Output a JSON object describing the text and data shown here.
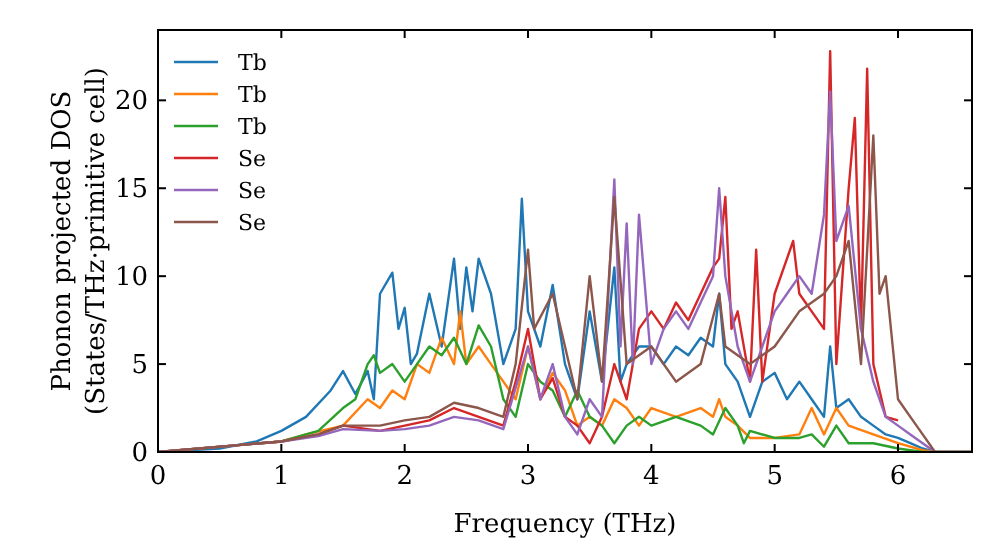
{
  "chart_data": {
    "type": "line",
    "xlabel": "Frequency (THz)",
    "ylabel": "Phonon projected DOS\n(States/THz·primitive cell)",
    "xlim": [
      0,
      6.6
    ],
    "ylim": [
      0,
      24
    ],
    "xticks": [
      0,
      1,
      2,
      3,
      4,
      5,
      6
    ],
    "yticks": [
      0,
      5,
      10,
      15,
      20
    ],
    "legend": "top left",
    "grid": false,
    "marker": "none",
    "line_style": "solid",
    "series": [
      {
        "name": "Tb",
        "color": "#1f77b4",
        "x": [
          0,
          0.5,
          0.8,
          1.0,
          1.2,
          1.4,
          1.5,
          1.6,
          1.7,
          1.75,
          1.8,
          1.9,
          1.95,
          2.0,
          2.05,
          2.1,
          2.2,
          2.3,
          2.4,
          2.45,
          2.5,
          2.55,
          2.6,
          2.7,
          2.8,
          2.9,
          2.95,
          3.0,
          3.1,
          3.2,
          3.3,
          3.4,
          3.5,
          3.6,
          3.7,
          3.75,
          3.8,
          3.9,
          4.0,
          4.1,
          4.2,
          4.3,
          4.4,
          4.5,
          4.55,
          4.6,
          4.7,
          4.8,
          4.9,
          5.0,
          5.1,
          5.2,
          5.3,
          5.4,
          5.45,
          5.5,
          5.6,
          5.7,
          5.8,
          5.9,
          6.0,
          6.1,
          6.2,
          6.3,
          6.6
        ],
        "values": [
          0,
          0.2,
          0.6,
          1.2,
          2,
          3.5,
          4.6,
          3.3,
          4.6,
          3,
          9,
          10.2,
          7,
          8.2,
          5,
          5.6,
          9,
          6,
          11,
          7,
          10.5,
          8,
          11,
          9,
          5,
          7,
          14.4,
          8,
          6,
          9.5,
          5,
          3,
          8,
          4,
          10.5,
          4,
          5,
          6,
          6,
          5,
          6,
          5.5,
          6.5,
          6,
          9,
          5,
          4,
          2,
          4,
          4.5,
          3,
          4,
          3,
          2,
          6,
          2.5,
          3,
          2,
          1.5,
          1,
          0.8,
          0.5,
          0.2,
          0,
          0
        ]
      },
      {
        "name": "Tb",
        "color": "#ff7f0e",
        "x": [
          0,
          1.0,
          1.2,
          1.5,
          1.7,
          1.8,
          1.9,
          2.0,
          2.1,
          2.2,
          2.3,
          2.4,
          2.45,
          2.5,
          2.6,
          2.7,
          2.8,
          2.9,
          3.0,
          3.1,
          3.2,
          3.3,
          3.4,
          3.5,
          3.6,
          3.7,
          3.8,
          3.9,
          4.0,
          4.2,
          4.4,
          4.5,
          4.55,
          4.6,
          4.7,
          4.8,
          5.0,
          5.2,
          5.3,
          5.4,
          5.5,
          5.6,
          5.8,
          6.0,
          6.2,
          6.3,
          6.6
        ],
        "values": [
          0,
          0.6,
          1,
          1.5,
          3,
          2.5,
          3.5,
          3,
          5,
          4.5,
          6.5,
          5,
          8,
          5,
          6,
          5,
          4,
          3,
          6,
          3,
          4.5,
          3.5,
          1.5,
          2,
          1.5,
          3,
          2.5,
          1.5,
          2.5,
          2,
          2.5,
          2,
          3,
          2,
          1.5,
          0.8,
          0.8,
          1,
          2.5,
          1,
          2.5,
          1.5,
          1,
          0.5,
          0.1,
          0,
          0
        ]
      },
      {
        "name": "Tb",
        "color": "#2ca02c",
        "x": [
          0,
          1.0,
          1.3,
          1.5,
          1.6,
          1.7,
          1.75,
          1.8,
          1.9,
          2.0,
          2.1,
          2.2,
          2.3,
          2.4,
          2.5,
          2.6,
          2.7,
          2.8,
          2.9,
          3.0,
          3.1,
          3.2,
          3.3,
          3.4,
          3.5,
          3.6,
          3.7,
          3.8,
          3.9,
          4.0,
          4.2,
          4.4,
          4.5,
          4.6,
          4.7,
          4.75,
          4.8,
          5.0,
          5.2,
          5.3,
          5.4,
          5.5,
          5.6,
          5.8,
          6.0,
          6.2,
          6.6
        ],
        "values": [
          0,
          0.6,
          1.2,
          2.5,
          3,
          5,
          5.5,
          4.5,
          5,
          4,
          5,
          6,
          5.5,
          6.5,
          5,
          7.2,
          6,
          3,
          2,
          5,
          4,
          3.5,
          2,
          3.5,
          2,
          1.5,
          0.5,
          1.5,
          2,
          1.5,
          2,
          1.5,
          1,
          2.5,
          1.5,
          0.5,
          1.2,
          0.8,
          0.8,
          1,
          0.3,
          1.5,
          0.5,
          0.5,
          0.2,
          0,
          0
        ]
      },
      {
        "name": "Se",
        "color": "#d62728",
        "x": [
          0,
          1.0,
          1.3,
          1.5,
          1.8,
          2.0,
          2.2,
          2.4,
          2.6,
          2.8,
          2.9,
          3.0,
          3.1,
          3.2,
          3.3,
          3.4,
          3.5,
          3.6,
          3.7,
          3.8,
          3.9,
          4.0,
          4.1,
          4.2,
          4.3,
          4.4,
          4.5,
          4.55,
          4.6,
          4.65,
          4.7,
          4.8,
          4.85,
          4.9,
          5.0,
          5.1,
          5.15,
          5.2,
          5.3,
          5.4,
          5.45,
          5.5,
          5.55,
          5.6,
          5.65,
          5.7,
          5.75,
          5.8,
          5.9,
          6.0
        ],
        "values": [
          0,
          0.6,
          1,
          1.5,
          1.2,
          1.5,
          1.8,
          2.5,
          2,
          1.5,
          4,
          7,
          3,
          4.2,
          2,
          1.5,
          0.5,
          2,
          5,
          3,
          7,
          8,
          7,
          8.5,
          7.5,
          9,
          10.5,
          11,
          14.5,
          7,
          8,
          4,
          11.5,
          4,
          9,
          11,
          12,
          9,
          8,
          7,
          22.8,
          5,
          10,
          15,
          19,
          7,
          21.8,
          5,
          2,
          1.8
        ]
      },
      {
        "name": "Se",
        "color": "#9467bd",
        "x": [
          0,
          1.0,
          1.3,
          1.5,
          1.8,
          2.0,
          2.2,
          2.4,
          2.6,
          2.8,
          3.0,
          3.1,
          3.2,
          3.3,
          3.4,
          3.5,
          3.6,
          3.7,
          3.75,
          3.8,
          3.85,
          3.9,
          4.0,
          4.1,
          4.2,
          4.3,
          4.4,
          4.5,
          4.55,
          4.6,
          4.7,
          4.8,
          4.9,
          5.0,
          5.1,
          5.2,
          5.3,
          5.4,
          5.45,
          5.5,
          5.6,
          5.7,
          5.8,
          5.9,
          6.0,
          6.1,
          6.2,
          6.3,
          6.6
        ],
        "values": [
          0,
          0.6,
          0.9,
          1.3,
          1.2,
          1.3,
          1.5,
          2,
          1.8,
          1.3,
          6,
          3,
          5,
          2,
          1,
          3,
          2,
          15.5,
          6,
          13,
          5,
          13.5,
          5,
          7,
          8,
          7,
          8.5,
          10,
          15,
          10,
          6,
          4,
          6,
          8,
          9,
          10,
          9,
          13.5,
          20.5,
          12,
          14,
          7,
          4,
          2,
          1.5,
          1,
          0.5,
          0,
          0
        ]
      },
      {
        "name": "Se",
        "color": "#8c564b",
        "x": [
          0,
          1.0,
          1.3,
          1.5,
          1.8,
          2.0,
          2.2,
          2.4,
          2.6,
          2.8,
          2.9,
          3.0,
          3.05,
          3.2,
          3.3,
          3.4,
          3.5,
          3.6,
          3.7,
          3.8,
          4.0,
          4.2,
          4.4,
          4.55,
          4.6,
          4.8,
          5.0,
          5.2,
          5.4,
          5.5,
          5.6,
          5.7,
          5.8,
          5.85,
          5.9,
          6.0,
          6.1,
          6.2,
          6.3,
          6.6
        ],
        "values": [
          0,
          0.6,
          1,
          1.5,
          1.5,
          1.8,
          2,
          2.8,
          2.5,
          2,
          5,
          11.5,
          7,
          9,
          6,
          3,
          10,
          4,
          14.5,
          5,
          6,
          4,
          5,
          9,
          6,
          5,
          6,
          8,
          9,
          10,
          12,
          5,
          18,
          9,
          10,
          3,
          2,
          1,
          0,
          0
        ]
      }
    ]
  }
}
